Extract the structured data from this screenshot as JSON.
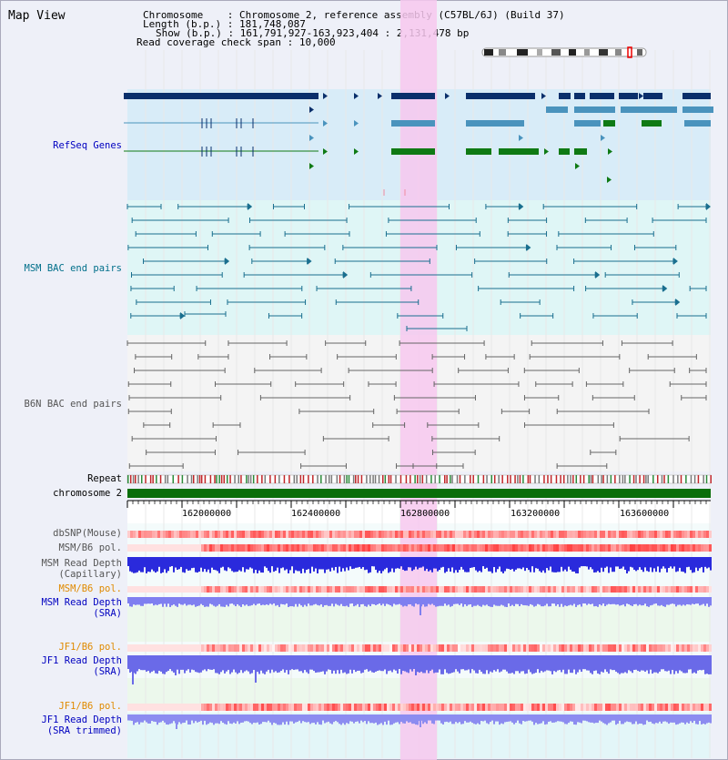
{
  "title": "Map View",
  "info": {
    "chromosome_label": "Chromosome",
    "chromosome_value": "Chromosome 2, reference assembly (C57BL/6J) (Build 37)",
    "length_label": "Length (b.p.)",
    "length_value": "181,748,087",
    "show_label": "Show (b.p.)",
    "show_value": "161,791,927-163,923,404 : 2,131,478 bp",
    "coverage_label": "Read coverage check span",
    "coverage_value": "10,000"
  },
  "tracks": {
    "refseq": "RefSeq Genes",
    "msm_bac": "MSM BAC end pairs",
    "b6n_bac": "B6N BAC end pairs",
    "repeat": "Repeat",
    "chromosome": "chromosome 2",
    "dbsnp": "dbSNP(Mouse)",
    "msm_b6_pol": "MSM/B6 pol.",
    "msm_read_depth_cap_1": "MSM Read Depth",
    "msm_read_depth_cap_2": "(Capillary)",
    "msm_b6_pol_2": "MSM/B6 pol.",
    "msm_read_depth_sra_1": "MSM Read Depth",
    "msm_read_depth_sra_2": "(SRA)",
    "jf1_b6_pol": "JF1/B6 pol.",
    "jf1_read_depth_1": "JF1 Read Depth",
    "jf1_read_depth_2": "(SRA)",
    "jf1_b6_pol_2": "JF1/B6 pol.",
    "jf1_trim_1": "JF1 Read Depth",
    "jf1_trim_2": "(SRA trimmed)"
  },
  "axis": {
    "ticks": [
      "162000000",
      "162400000",
      "162800000",
      "163200000",
      "163600000"
    ]
  },
  "colors": {
    "highlight": "#f7c8ef",
    "gene_dark": "#0a2f6b",
    "gene_light": "#4a93bd",
    "gene_green": "#0f7a14",
    "bac_teal": "#1a6f8f",
    "bac_gray": "#666666",
    "chrom_green": "#0a6e0a",
    "depth_blue": "#2a2adc"
  }
}
